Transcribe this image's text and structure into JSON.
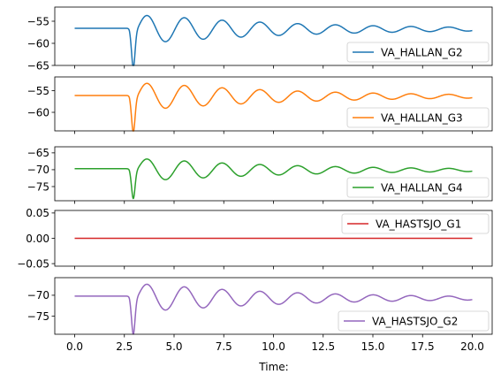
{
  "chart_data": [
    {
      "type": "line",
      "series": [
        {
          "name": "VA_HALLAN_G2",
          "color": "#1f77b4"
        }
      ],
      "ylim": [
        -65,
        -51.8
      ],
      "yticks": [
        -65,
        -60,
        -55
      ],
      "ytick_labels": [
        "−65",
        "−60",
        "−55"
      ],
      "xlim": [
        -1,
        21
      ],
      "xticks": [
        0,
        2.5,
        5,
        7.5,
        10,
        12.5,
        15,
        17.5,
        20
      ],
      "x_tick_labels_shown": false,
      "legend": "lower-right",
      "grid": false,
      "signal": {
        "base": -56.6,
        "depth": -64.5,
        "peak": -52.3,
        "ringing_amp": 3.7,
        "decay_tau": 8.0,
        "period": 1.9,
        "settle_shift": -0.2
      }
    },
    {
      "type": "line",
      "series": [
        {
          "name": "VA_HALLAN_G3",
          "color": "#ff7f0e"
        }
      ],
      "ylim": [
        -64.3,
        -51.8
      ],
      "yticks": [
        -60,
        -55
      ],
      "ytick_labels": [
        "−60",
        "−55"
      ],
      "xlim": [
        -1,
        21
      ],
      "xticks": [
        0,
        2.5,
        5,
        7.5,
        10,
        12.5,
        15,
        17.5,
        20
      ],
      "x_tick_labels_shown": false,
      "legend": "lower-right",
      "grid": false,
      "signal": {
        "base": -56.1,
        "depth": -63.6,
        "peak": -52.2,
        "ringing_amp": 3.6,
        "decay_tau": 8.0,
        "period": 1.9,
        "settle_shift": -0.2
      }
    },
    {
      "type": "line",
      "series": [
        {
          "name": "VA_HALLAN_G4",
          "color": "#2ca02c"
        }
      ],
      "ylim": [
        -79.2,
        -63.2
      ],
      "yticks": [
        -75,
        -70,
        -65
      ],
      "ytick_labels": [
        "−75",
        "−70",
        "−65"
      ],
      "xlim": [
        -1,
        21
      ],
      "xticks": [
        0,
        2.5,
        5,
        7.5,
        10,
        12.5,
        15,
        17.5,
        20
      ],
      "x_tick_labels_shown": false,
      "legend": "lower-right",
      "grid": false,
      "signal": {
        "base": -69.7,
        "depth": -77.5,
        "peak": -65.2,
        "ringing_amp": 3.8,
        "decay_tau": 8.0,
        "period": 1.9,
        "settle_shift": -0.4
      }
    },
    {
      "type": "line",
      "series": [
        {
          "name": "VA_HASTSJO_G1",
          "color": "#d62728"
        }
      ],
      "ylim": [
        -0.055,
        0.055
      ],
      "yticks": [
        -0.05,
        0.0,
        0.05
      ],
      "ytick_labels": [
        "−0.05",
        "0.00",
        "0.05"
      ],
      "xlim": [
        -1,
        21
      ],
      "xticks": [
        0,
        2.5,
        5,
        7.5,
        10,
        12.5,
        15,
        17.5,
        20
      ],
      "x_tick_labels_shown": false,
      "legend": "upper-right",
      "grid": false,
      "signal": {
        "constant": 0.0
      }
    },
    {
      "type": "line",
      "series": [
        {
          "name": "VA_HASTSJO_G2",
          "color": "#9467bd"
        }
      ],
      "ylim": [
        -79.3,
        -65.8
      ],
      "yticks": [
        -75,
        -70
      ],
      "ytick_labels": [
        "−75",
        "−70"
      ],
      "xlim": [
        -1,
        21
      ],
      "xticks": [
        0,
        2.5,
        5,
        7.5,
        10,
        12.5,
        15,
        17.5,
        20
      ],
      "x_tick_labels": [
        "0.0",
        "2.5",
        "5.0",
        "7.5",
        "10.0",
        "12.5",
        "15.0",
        "17.5",
        "20.0"
      ],
      "x_tick_labels_shown": true,
      "xlabel": "Time:",
      "legend": "lower-right",
      "grid": false,
      "signal": {
        "base": -70.2,
        "depth": -78.2,
        "peak": -66.5,
        "ringing_amp": 3.8,
        "decay_tau": 8.0,
        "period": 1.9,
        "settle_shift": -0.5
      }
    }
  ],
  "time": {
    "start": 0.0,
    "end": 20.0,
    "fault_time": 2.6
  }
}
